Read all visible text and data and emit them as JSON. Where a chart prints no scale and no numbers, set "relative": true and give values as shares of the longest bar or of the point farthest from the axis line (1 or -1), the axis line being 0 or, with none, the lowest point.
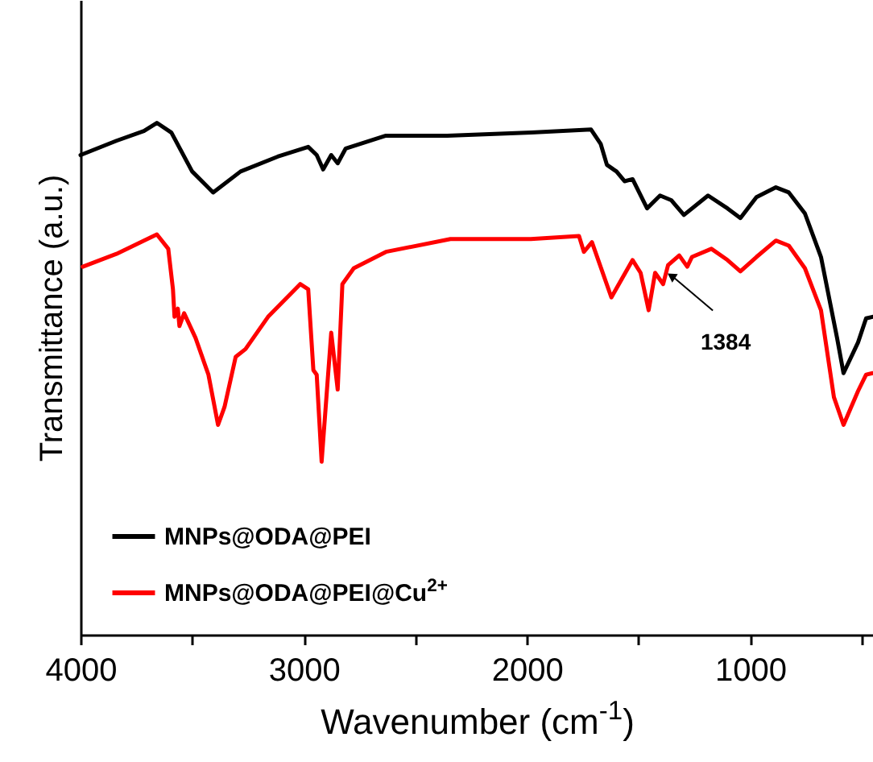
{
  "chart_data": {
    "type": "line",
    "relative": true,
    "xlabel": "Wavenumber (cm$^{-1}$)",
    "ylabel": "Transmittance (a.u.)",
    "xlim": [
      4000,
      450
    ],
    "xticks": [
      4000,
      {
        "value": 3500,
        "label": null
      },
      3000,
      {
        "value": 2500,
        "label": null
      },
      2000,
      {
        "value": 1500,
        "label": null
      },
      1000,
      {
        "value": 500,
        "label": null
      }
    ],
    "x": [
      4000,
      3839,
      3716,
      3658,
      3593,
      3500,
      3406,
      3283,
      3117,
      2980,
      2942,
      2913,
      2877,
      2848,
      2812,
      2632,
      2357,
      1980,
      1713,
      1670,
      1642,
      1599,
      1563,
      1527,
      1462,
      1404,
      1354,
      1297,
      1189,
      1102,
      1044,
      972,
      885,
      827,
      755,
      683,
      611,
      582,
      517,
      481,
      452
    ],
    "series": [
      {
        "name": "MNPs@ODA@PEI",
        "color": "#000000",
        "values": [
          0.937,
          0.965,
          0.984,
          1.0,
          0.981,
          0.905,
          0.864,
          0.905,
          0.934,
          0.953,
          0.937,
          0.909,
          0.937,
          0.921,
          0.95,
          0.975,
          0.975,
          0.981,
          0.987,
          0.959,
          0.918,
          0.905,
          0.886,
          0.89,
          0.833,
          0.858,
          0.849,
          0.82,
          0.858,
          0.833,
          0.814,
          0.855,
          0.874,
          0.864,
          0.823,
          0.738,
          0.58,
          0.511,
          0.571,
          0.618,
          0.621
        ]
      },
      {
        "name": "MNPs@ODA@PEI@Cu$^{2+}$",
        "color": "#ff0000",
        "x": [
          3990,
          3839,
          3716,
          3658,
          3607,
          3586,
          3579,
          3564,
          3557,
          3536,
          3485,
          3427,
          3384,
          3355,
          3305,
          3261,
          3160,
          3016,
          2980,
          2957,
          2942,
          2920,
          2877,
          2848,
          2827,
          2776,
          2632,
          2343,
          1983,
          1767,
          1745,
          1709,
          1622,
          1527,
          1491,
          1455,
          1426,
          1390,
          1368,
          1318,
          1282,
          1261,
          1174,
          1102,
          1044,
          972,
          885,
          827,
          755,
          683,
          625,
          582,
          517,
          481,
          452
        ],
        "values": [
          0.719,
          0.744,
          0.77,
          0.782,
          0.754,
          0.675,
          0.621,
          0.637,
          0.603,
          0.628,
          0.58,
          0.508,
          0.41,
          0.445,
          0.543,
          0.558,
          0.621,
          0.685,
          0.675,
          0.517,
          0.508,
          0.338,
          0.59,
          0.479,
          0.685,
          0.716,
          0.748,
          0.773,
          0.773,
          0.779,
          0.748,
          0.767,
          0.659,
          0.732,
          0.707,
          0.634,
          0.707,
          0.685,
          0.722,
          0.741,
          0.719,
          0.738,
          0.754,
          0.732,
          0.71,
          0.738,
          0.77,
          0.76,
          0.716,
          0.634,
          0.464,
          0.41,
          0.476,
          0.508,
          0.511
        ]
      }
    ],
    "annotations": [
      {
        "text": "1384",
        "x": 1384,
        "y": 0.69
      }
    ],
    "legend": "bottom left",
    "marker": "none",
    "line_style": "solid",
    "grid": false
  }
}
